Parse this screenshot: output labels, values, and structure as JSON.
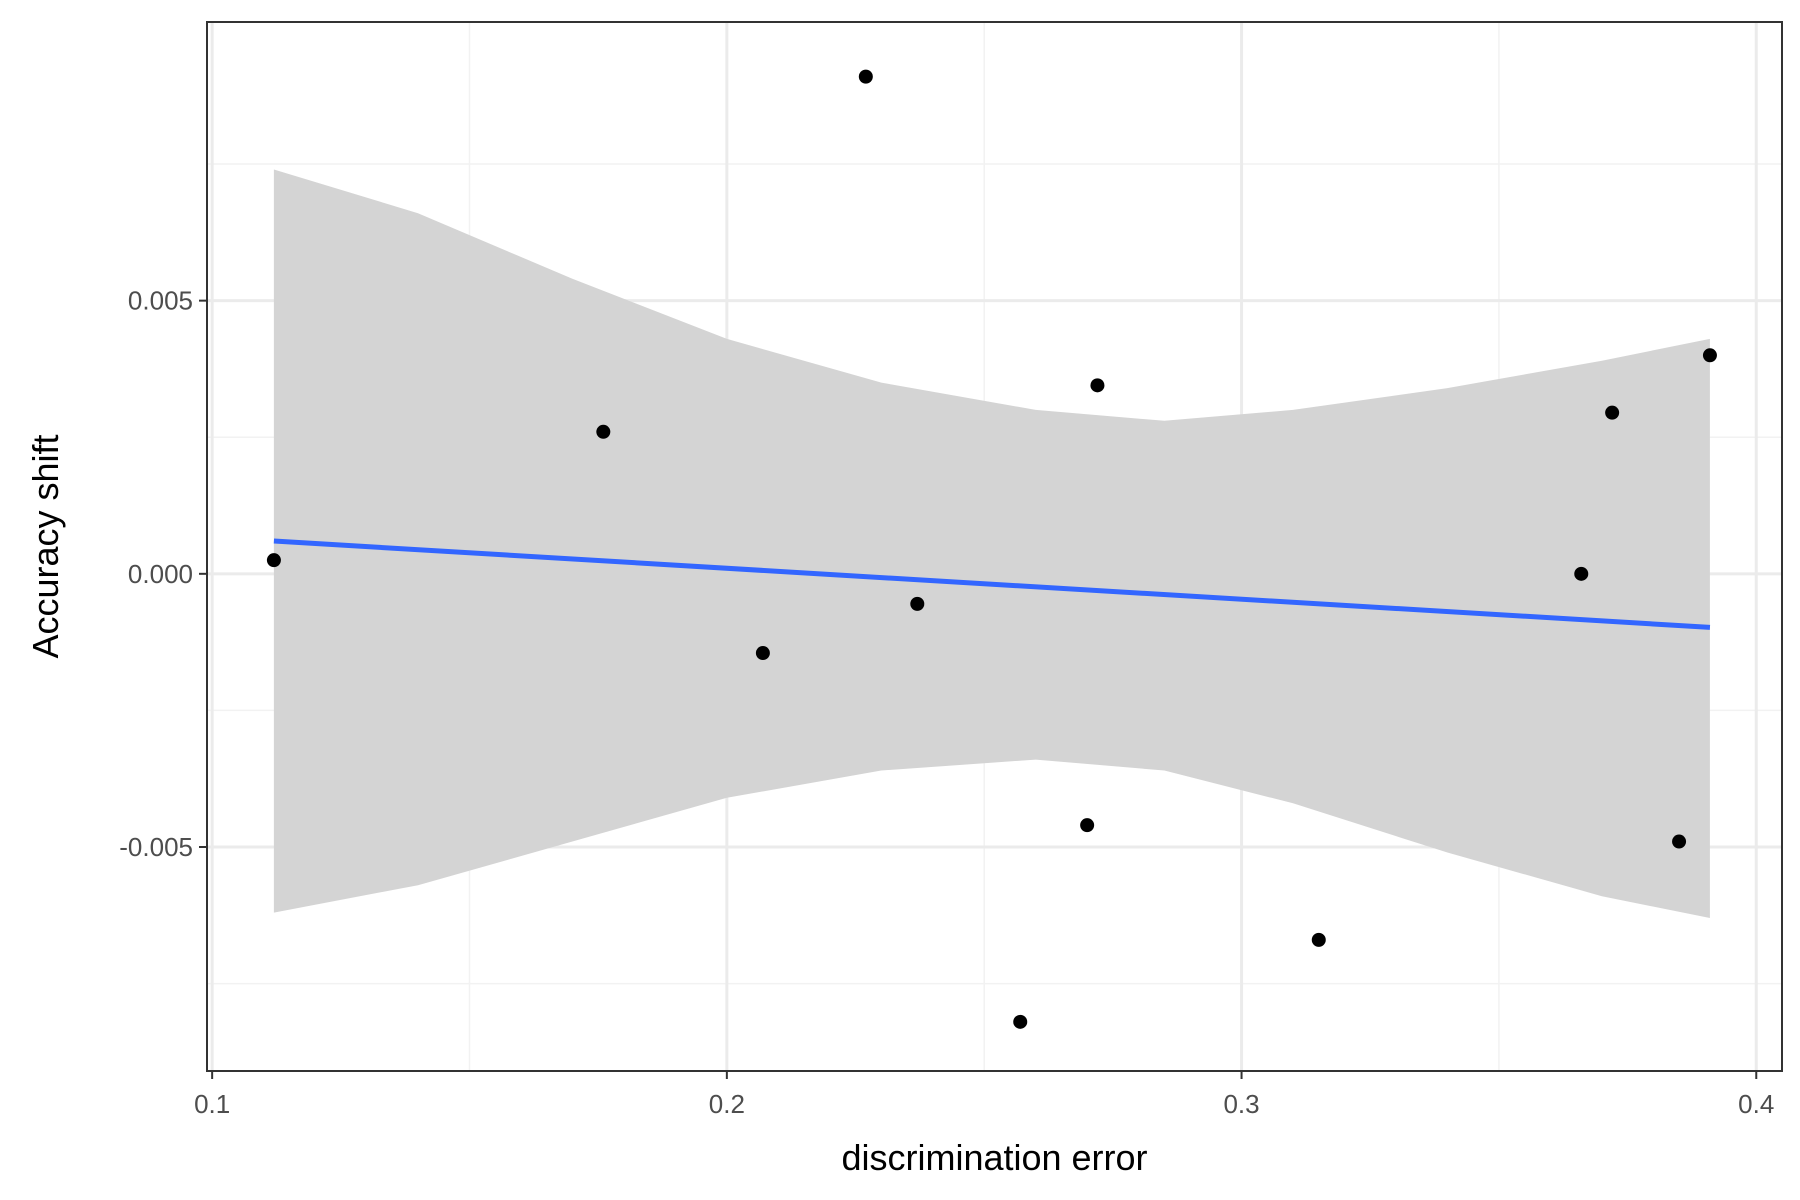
{
  "chart_data": {
    "type": "scatter",
    "title": "",
    "xlabel": "discrimination error",
    "ylabel": "Accuracy shift",
    "xlim": [
      0.099,
      0.405
    ],
    "ylim": [
      -0.0091,
      0.0101
    ],
    "x_ticks": [
      0.1,
      0.2,
      0.3,
      0.4
    ],
    "x_tick_labels": [
      "0.1",
      "0.2",
      "0.3",
      "0.4"
    ],
    "y_ticks": [
      -0.005,
      0.0,
      0.005
    ],
    "y_tick_labels": [
      "-0.005",
      "0.000",
      "0.005"
    ],
    "x_minor_ticks": [
      0.15,
      0.25,
      0.35
    ],
    "y_minor_ticks": [
      -0.0075,
      -0.0025,
      0.0025,
      0.0075
    ],
    "grid": true,
    "theme": "bw",
    "colors": {
      "points": "#000000",
      "fit_line": "#3366ff",
      "confidence_band": "#d4d4d4",
      "major_grid": "#ebebeb",
      "minor_grid": "#f2f2f2",
      "panel_border": "#333333"
    },
    "series": [
      {
        "type": "points",
        "x": [
          0.112,
          0.176,
          0.207,
          0.227,
          0.237,
          0.257,
          0.27,
          0.272,
          0.315,
          0.366,
          0.372,
          0.385,
          0.391
        ],
        "y": [
          0.00025,
          0.0026,
          -0.00145,
          0.0091,
          -0.00055,
          -0.0082,
          -0.0046,
          0.00345,
          -0.0067,
          0.0,
          0.00295,
          -0.0049,
          0.004
        ]
      },
      {
        "type": "linear-fit",
        "x": [
          0.112,
          0.391
        ],
        "y": [
          0.0006,
          -0.00098
        ],
        "confidence_band": {
          "x": [
            0.112,
            0.14,
            0.17,
            0.2,
            0.23,
            0.26,
            0.285,
            0.31,
            0.34,
            0.37,
            0.391
          ],
          "lower": [
            -0.0062,
            -0.0057,
            -0.0049,
            -0.0041,
            -0.0036,
            -0.0034,
            -0.0036,
            -0.0042,
            -0.0051,
            -0.0059,
            -0.0063
          ],
          "upper": [
            0.0074,
            0.0066,
            0.0054,
            0.0043,
            0.0035,
            0.003,
            0.0028,
            0.003,
            0.0034,
            0.0039,
            0.0043
          ]
        }
      }
    ]
  }
}
